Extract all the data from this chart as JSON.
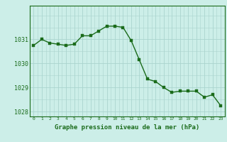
{
  "hours": [
    0,
    1,
    2,
    3,
    4,
    5,
    6,
    7,
    8,
    9,
    10,
    11,
    12,
    13,
    14,
    15,
    16,
    17,
    18,
    19,
    20,
    21,
    22,
    23
  ],
  "pressure": [
    1030.75,
    1031.0,
    1030.85,
    1030.8,
    1030.75,
    1030.8,
    1031.15,
    1031.15,
    1031.35,
    1031.55,
    1031.55,
    1031.5,
    1030.95,
    1030.15,
    1029.35,
    1029.25,
    1029.0,
    1028.8,
    1028.85,
    1028.85,
    1028.85,
    1028.6,
    1028.7,
    1028.25
  ],
  "line_color": "#1a6b1a",
  "marker_color": "#1a6b1a",
  "bg_color": "#cceee8",
  "grid_color": "#aad4ce",
  "axis_color": "#1a6b1a",
  "xlabel": "Graphe pression niveau de la mer (hPa)",
  "xlabel_fontsize": 6.5,
  "ylim_min": 1027.8,
  "ylim_max": 1032.4,
  "ytick_labels": [
    1028,
    1029,
    1030,
    1031
  ],
  "line_width": 1.0,
  "marker_size": 2.5
}
